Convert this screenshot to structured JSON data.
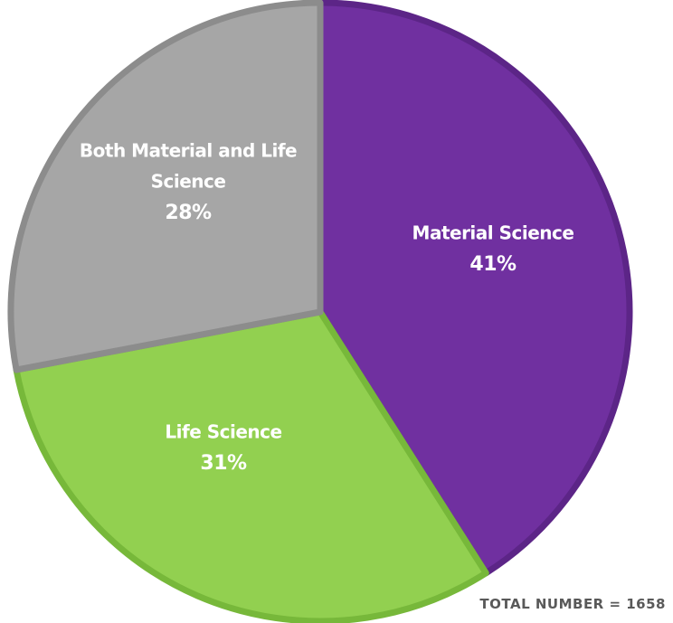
{
  "chart_data": {
    "type": "pie",
    "slices": [
      {
        "name": "Material Science",
        "label_lines": [
          "Material Science"
        ],
        "value": 41,
        "percent_label": "41%",
        "fill": "#7030a0",
        "stroke": "#5c2587"
      },
      {
        "name": "Life Science",
        "label_lines": [
          "Life Science"
        ],
        "value": 31,
        "percent_label": "31%",
        "fill": "#92d050",
        "stroke": "#77b83a"
      },
      {
        "name": "Both Material and Life Science",
        "label_lines": [
          "Both Material and Life",
          "Science"
        ],
        "value": 28,
        "percent_label": "28%",
        "fill": "#a6a6a6",
        "stroke": "#8c8c8c"
      }
    ],
    "annotation": "TOTAL NUMBER = 1658",
    "start_direction": "top",
    "direction": "clockwise",
    "legend": "none"
  }
}
